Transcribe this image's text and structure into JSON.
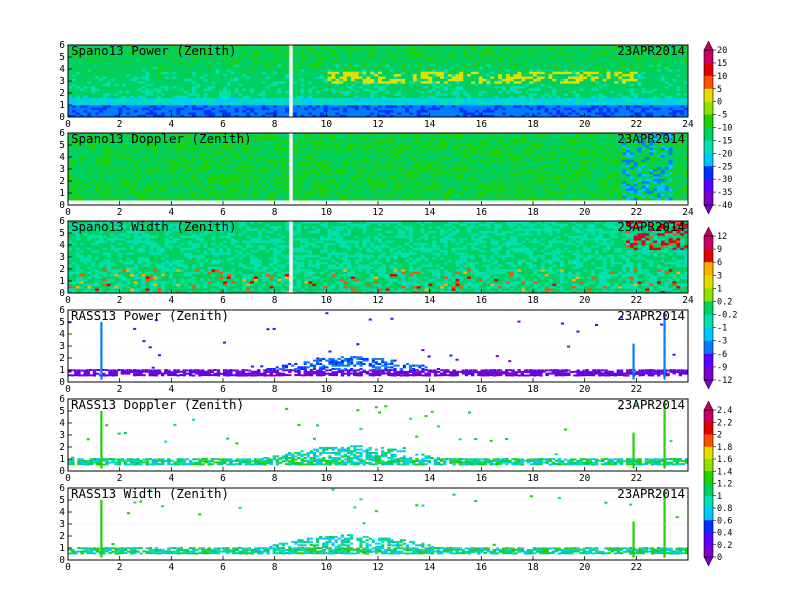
{
  "chart_data": [
    {
      "type": "heatmap",
      "title": "Spano13 Power (Zenith)",
      "date": "23APR2014",
      "xticks": [
        "0",
        "2",
        "4",
        "6",
        "8",
        "10",
        "12",
        "14",
        "16",
        "18",
        "20",
        "22",
        "24"
      ],
      "yticks": [
        "0",
        "1",
        "2",
        "3",
        "4",
        "5",
        "6"
      ],
      "xlim": [
        0,
        24
      ],
      "ylim": [
        0,
        6
      ],
      "colorbar": 0
    },
    {
      "type": "heatmap",
      "title": "Spano13 Doppler (Zenith)",
      "date": "23APR2014",
      "xticks": [
        "0",
        "2",
        "4",
        "6",
        "8",
        "10",
        "12",
        "14",
        "16",
        "18",
        "20",
        "22",
        "24"
      ],
      "yticks": [
        "0",
        "1",
        "2",
        "3",
        "4",
        "5",
        "6"
      ],
      "xlim": [
        0,
        24
      ],
      "ylim": [
        0,
        6
      ],
      "colorbar": 0
    },
    {
      "type": "heatmap",
      "title": "Spano13 Width (Zenith)",
      "date": "23APR2014",
      "xticks": [
        "0",
        "2",
        "4",
        "6",
        "8",
        "10",
        "12",
        "14",
        "16",
        "18",
        "20",
        "22",
        "24"
      ],
      "yticks": [
        "0",
        "1",
        "2",
        "3",
        "4",
        "5",
        "6"
      ],
      "xlim": [
        0,
        24
      ],
      "ylim": [
        0,
        6
      ],
      "colorbar": 1
    },
    {
      "type": "heatmap",
      "title": "RASS13 Power (Zenith)",
      "date": "23APR2014",
      "xticks": [
        "0",
        "2",
        "4",
        "6",
        "8",
        "10",
        "12",
        "14",
        "16",
        "18",
        "20",
        "22"
      ],
      "yticks": [
        "0",
        "1",
        "2",
        "3",
        "4",
        "5",
        "6"
      ],
      "xlim": [
        0,
        24
      ],
      "ylim": [
        0,
        6
      ],
      "colorbar": 1
    },
    {
      "type": "heatmap",
      "title": "RASS13 Doppler (Zenith)",
      "date": "23APR2014",
      "xticks": [
        "0",
        "2",
        "4",
        "6",
        "8",
        "10",
        "12",
        "14",
        "16",
        "18",
        "20",
        "22"
      ],
      "yticks": [
        "0",
        "1",
        "2",
        "3",
        "4",
        "5",
        "6"
      ],
      "xlim": [
        0,
        24
      ],
      "ylim": [
        0,
        6
      ],
      "colorbar": 2
    },
    {
      "type": "heatmap",
      "title": "RASS13 Width (Zenith)",
      "date": "23APR2014",
      "xticks": [
        "0",
        "2",
        "4",
        "6",
        "8",
        "10",
        "12",
        "14",
        "16",
        "18",
        "20",
        "22"
      ],
      "yticks": [
        "0",
        "1",
        "2",
        "3",
        "4",
        "5",
        "6"
      ],
      "xlim": [
        0,
        24
      ],
      "ylim": [
        0,
        6
      ],
      "colorbar": 2
    }
  ],
  "colorbars": [
    {
      "labels": [
        "20",
        "15",
        "10",
        "5",
        "0",
        "-5",
        "-10",
        "-15",
        "-20",
        "-25",
        "-30",
        "-35",
        "-40"
      ]
    },
    {
      "labels": [
        "12",
        "9",
        "6",
        "3",
        "1",
        "0.2",
        "-0.2",
        "-1",
        "-3",
        "-6",
        "-9",
        "-12"
      ]
    },
    {
      "labels": [
        "2.4",
        "2.2",
        "2",
        "1.8",
        "1.6",
        "1.4",
        "1.2",
        "1",
        "0.8",
        "0.6",
        "0.4",
        "0.2",
        "0"
      ]
    }
  ],
  "colors": {
    "palette": [
      "#7a00c8",
      "#5a00ff",
      "#0030ff",
      "#007cff",
      "#00c8ff",
      "#00e0b0",
      "#00d060",
      "#20d000",
      "#90e000",
      "#e0e000",
      "#ffb000",
      "#ff5000",
      "#e00000",
      "#c80060"
    ]
  }
}
